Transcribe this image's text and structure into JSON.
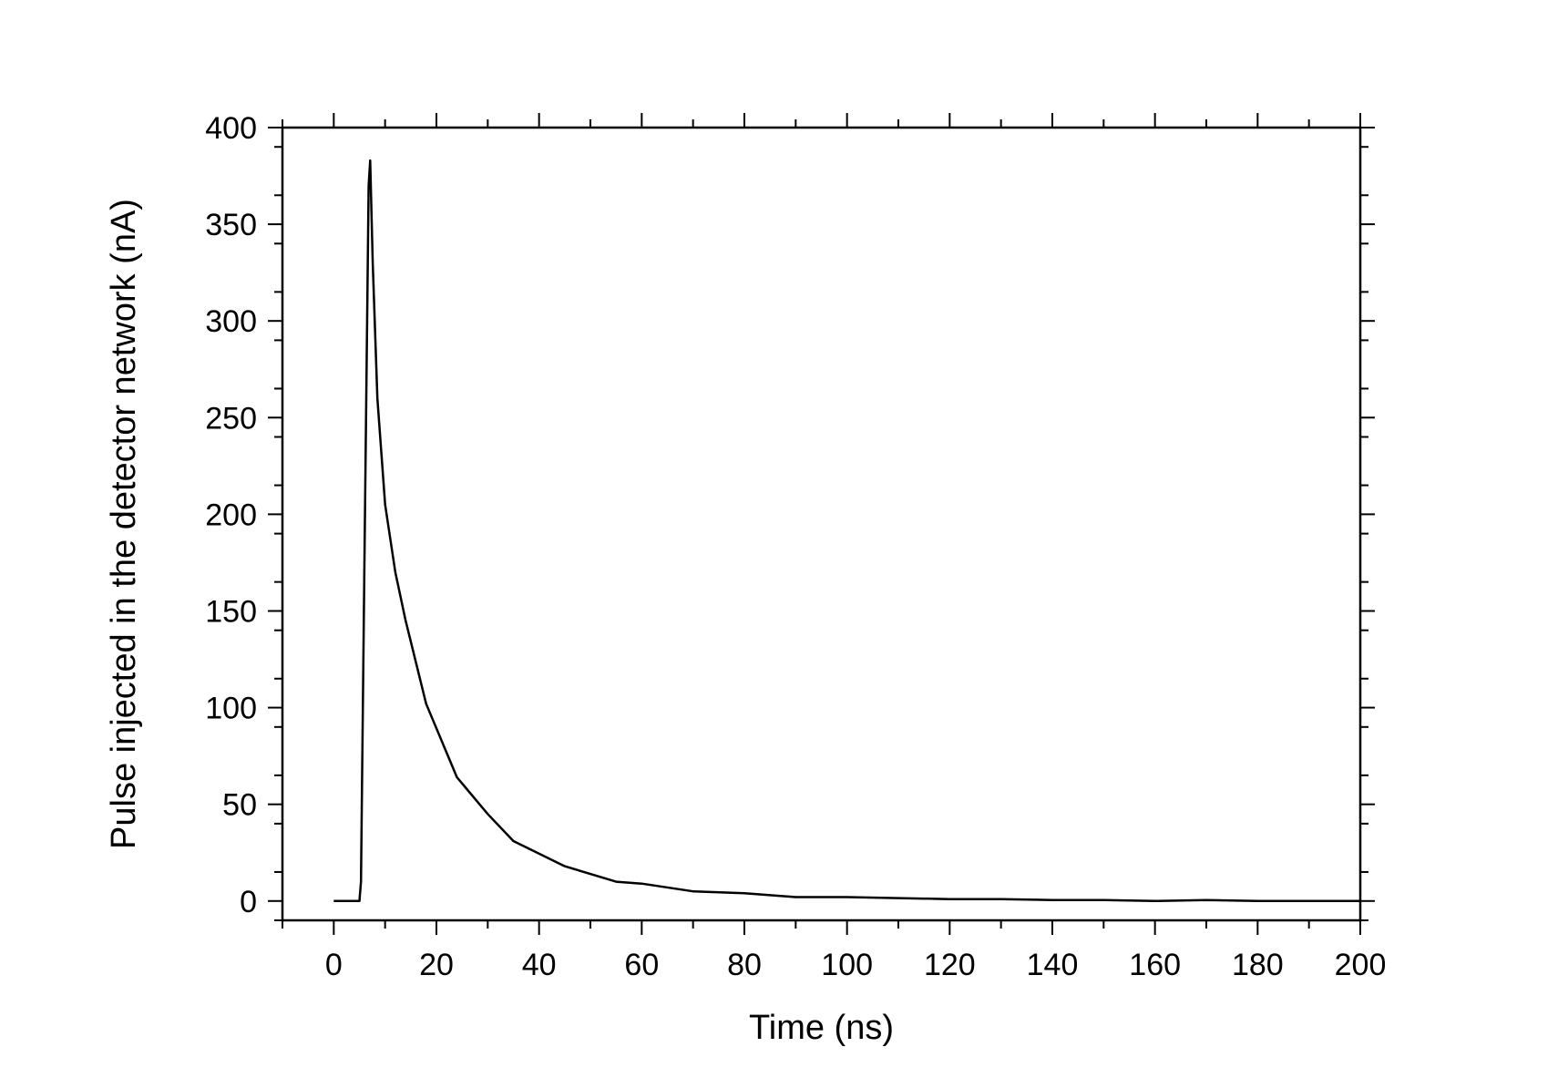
{
  "chart_data": {
    "type": "line",
    "title": "",
    "xlabel": "Time (ns)",
    "ylabel": "Pulse injected in the detector network (nA)",
    "xlim": [
      -10,
      200
    ],
    "ylim": [
      -10,
      400
    ],
    "x_ticks": [
      0,
      20,
      40,
      60,
      80,
      100,
      120,
      140,
      160,
      180,
      200
    ],
    "y_ticks": [
      0,
      50,
      100,
      150,
      200,
      250,
      300,
      350,
      400
    ],
    "x_minor_step": 10,
    "y_minor_step": 25,
    "grid": false,
    "legend": "none",
    "line_color": "#000000",
    "series": [
      {
        "points": [
          [
            0,
            0
          ],
          [
            5,
            0
          ],
          [
            5.3,
            10
          ],
          [
            6,
            180
          ],
          [
            6.8,
            370
          ],
          [
            7.1,
            383
          ],
          [
            7.6,
            330
          ],
          [
            8.5,
            260
          ],
          [
            10,
            205
          ],
          [
            12,
            170
          ],
          [
            14,
            145
          ],
          [
            18,
            102
          ],
          [
            24,
            64
          ],
          [
            30,
            45
          ],
          [
            35,
            31
          ],
          [
            45,
            18
          ],
          [
            55,
            10
          ],
          [
            60,
            9
          ],
          [
            70,
            5
          ],
          [
            80,
            4
          ],
          [
            90,
            2
          ],
          [
            100,
            2
          ],
          [
            110,
            1.5
          ],
          [
            120,
            1
          ],
          [
            130,
            1
          ],
          [
            140,
            0.5
          ],
          [
            150,
            0.5
          ],
          [
            160,
            0
          ],
          [
            170,
            0.5
          ],
          [
            180,
            0
          ],
          [
            190,
            0
          ],
          [
            200,
            0
          ]
        ]
      }
    ]
  }
}
